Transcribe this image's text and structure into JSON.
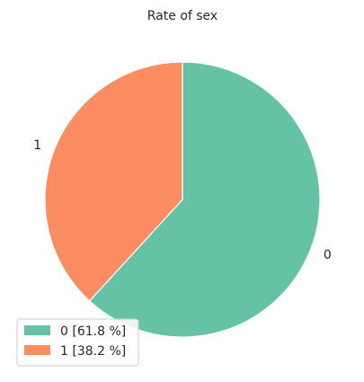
{
  "chart_data": {
    "type": "pie",
    "title": "Rate of sex",
    "labels": [
      "0",
      "1"
    ],
    "values": [
      61.8,
      38.2
    ],
    "colors": [
      "#66c2a5",
      "#fc8d62"
    ],
    "legend": [
      "0 [61.8 %]",
      "1 [38.2 %]"
    ],
    "legend_position": "lower-left",
    "start_angle_deg": 90,
    "direction": "clockwise",
    "edge_color": "#ffffff"
  }
}
